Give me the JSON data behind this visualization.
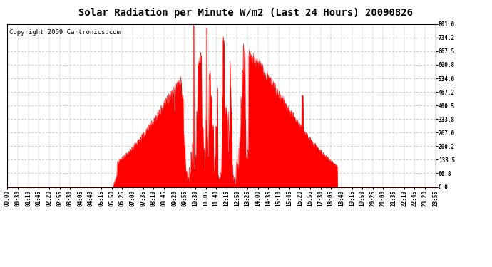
{
  "title": "Solar Radiation per Minute W/m2 (Last 24 Hours) 20090826",
  "copyright": "Copyright 2009 Cartronics.com",
  "fill_color": "#ff0000",
  "line_color": "#ff0000",
  "bg_color": "#ffffff",
  "plot_bg_color": "#ffffff",
  "grid_color": "#bbbbbb",
  "dashed_line_color": "#ff0000",
  "yticks": [
    0.0,
    66.8,
    133.5,
    200.2,
    267.0,
    333.8,
    400.5,
    467.2,
    534.0,
    600.8,
    667.5,
    734.2,
    801.0
  ],
  "ymin": 0.0,
  "ymax": 801.0,
  "x_tick_labels": [
    "00:00",
    "00:30",
    "01:10",
    "01:45",
    "02:20",
    "02:55",
    "03:30",
    "04:05",
    "04:40",
    "05:15",
    "05:50",
    "06:25",
    "07:00",
    "07:35",
    "08:10",
    "08:45",
    "09:20",
    "09:55",
    "10:30",
    "11:05",
    "11:40",
    "12:15",
    "12:50",
    "13:25",
    "14:00",
    "14:35",
    "15:10",
    "15:45",
    "16:20",
    "16:55",
    "17:30",
    "18:05",
    "18:40",
    "19:15",
    "19:50",
    "20:25",
    "21:00",
    "21:35",
    "22:10",
    "22:45",
    "23:20",
    "23:55"
  ],
  "title_fontsize": 10,
  "copyright_fontsize": 6.5,
  "tick_fontsize": 5.5
}
